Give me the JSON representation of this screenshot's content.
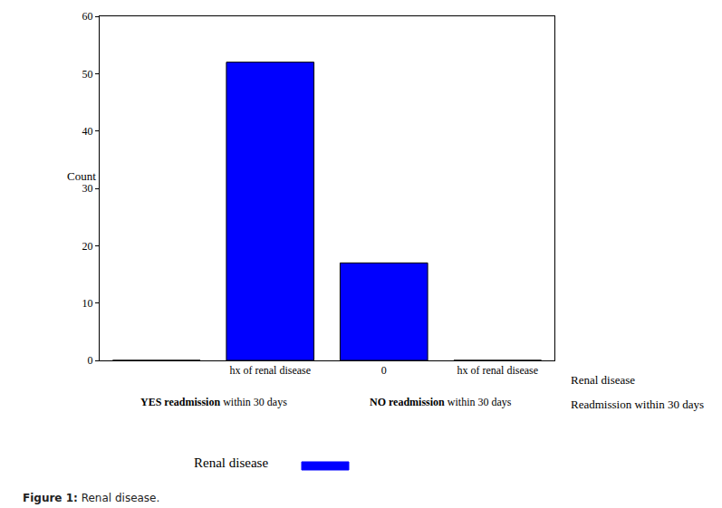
{
  "chart_data": {
    "type": "bar",
    "title": "Figure 1: Renal disease.",
    "ylabel": "Count",
    "categories": [
      null,
      "hx of renal disease",
      "0",
      "hx of renal disease"
    ],
    "groups": [
      "YES readmission within 30 days",
      "NO readmission within 30 days"
    ],
    "row_labels": [
      "Renal disease",
      "Readmission within 30 days"
    ],
    "series": [
      {
        "name": "Renal disease",
        "color": "#0000ff",
        "values": [
          0,
          52,
          17,
          0
        ]
      }
    ],
    "ylim": [
      0,
      60
    ],
    "yticks": [
      0,
      10,
      20,
      30,
      40,
      50,
      60
    ],
    "grid": false,
    "legend": "bottom"
  }
}
